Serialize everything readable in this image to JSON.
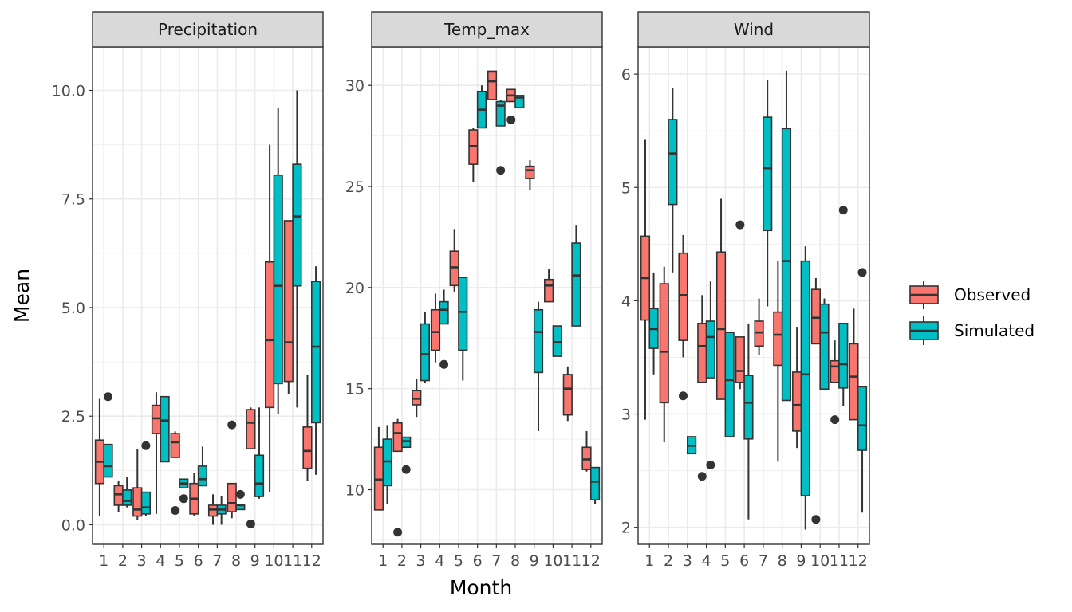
{
  "chart_data": {
    "type": "boxplot",
    "xlabel": "Month",
    "ylabel": "Mean",
    "legend": {
      "position": "right",
      "entries": [
        {
          "name": "Observed",
          "color": "#F8766D"
        },
        {
          "name": "Simulated",
          "color": "#00BFC4"
        }
      ]
    },
    "categories": [
      "1",
      "2",
      "3",
      "4",
      "5",
      "6",
      "7",
      "8",
      "9",
      "10",
      "11",
      "12"
    ],
    "panels": [
      {
        "title": "Precipitation",
        "ylim": [
          -0.45,
          11.0
        ],
        "ticks": [
          0.0,
          2.5,
          5.0,
          7.5,
          10.0
        ],
        "tick_labels": [
          "0.0",
          "2.5",
          "5.0",
          "7.5",
          "10.0"
        ],
        "series": [
          {
            "name": "Observed",
            "boxes": [
              {
                "month": 1,
                "min": 0.2,
                "q1": 0.95,
                "median": 1.45,
                "q3": 1.95,
                "max": 2.9,
                "outliers": []
              },
              {
                "month": 2,
                "min": 0.3,
                "q1": 0.45,
                "median": 0.7,
                "q3": 0.9,
                "max": 1.0,
                "outliers": []
              },
              {
                "month": 3,
                "min": 0.1,
                "q1": 0.2,
                "median": 0.35,
                "q3": 0.85,
                "max": 1.75,
                "outliers": []
              },
              {
                "month": 4,
                "min": 0.25,
                "q1": 2.1,
                "median": 2.45,
                "q3": 2.75,
                "max": 3.05,
                "outliers": []
              },
              {
                "month": 5,
                "min": 1.55,
                "q1": 1.55,
                "median": 1.9,
                "q3": 2.1,
                "max": 2.15,
                "outliers": [
                  0.33
                ]
              },
              {
                "month": 6,
                "min": 0.2,
                "q1": 0.25,
                "median": 0.6,
                "q3": 0.95,
                "max": 1.2,
                "outliers": []
              },
              {
                "month": 7,
                "min": 0.0,
                "q1": 0.2,
                "median": 0.35,
                "q3": 0.45,
                "max": 0.7,
                "outliers": []
              },
              {
                "month": 8,
                "min": 0.15,
                "q1": 0.3,
                "median": 0.5,
                "q3": 0.95,
                "max": 0.95,
                "outliers": [
                  2.3
                ]
              },
              {
                "month": 9,
                "min": 1.75,
                "q1": 1.75,
                "median": 2.35,
                "q3": 2.65,
                "max": 2.7,
                "outliers": [
                  0.02
                ]
              },
              {
                "month": 10,
                "min": 0.75,
                "q1": 2.7,
                "median": 4.25,
                "q3": 6.05,
                "max": 8.75,
                "outliers": []
              },
              {
                "month": 11,
                "min": 3.0,
                "q1": 3.3,
                "median": 4.2,
                "q3": 7.0,
                "max": 7.0,
                "outliers": []
              },
              {
                "month": 12,
                "min": 1.0,
                "q1": 1.3,
                "median": 1.7,
                "q3": 2.25,
                "max": 3.45,
                "outliers": []
              }
            ]
          },
          {
            "name": "Simulated",
            "boxes": [
              {
                "month": 1,
                "min": 1.1,
                "q1": 1.1,
                "median": 1.35,
                "q3": 1.85,
                "max": 1.85,
                "outliers": [
                  2.95
                ]
              },
              {
                "month": 2,
                "min": 0.4,
                "q1": 0.45,
                "median": 0.55,
                "q3": 0.8,
                "max": 1.1,
                "outliers": []
              },
              {
                "month": 3,
                "min": 0.2,
                "q1": 0.25,
                "median": 0.4,
                "q3": 0.75,
                "max": 0.75,
                "outliers": [
                  1.82
                ]
              },
              {
                "month": 4,
                "min": 1.45,
                "q1": 1.45,
                "median": 2.4,
                "q3": 2.95,
                "max": 2.95,
                "outliers": []
              },
              {
                "month": 5,
                "min": 0.85,
                "q1": 0.85,
                "median": 0.95,
                "q3": 1.05,
                "max": 1.05,
                "outliers": [
                  0.6
                ]
              },
              {
                "month": 6,
                "min": 0.9,
                "q1": 0.9,
                "median": 1.05,
                "q3": 1.35,
                "max": 1.8,
                "outliers": []
              },
              {
                "month": 7,
                "min": 0.0,
                "q1": 0.25,
                "median": 0.35,
                "q3": 0.45,
                "max": 0.65,
                "outliers": []
              },
              {
                "month": 8,
                "min": 0.35,
                "q1": 0.35,
                "median": 0.45,
                "q3": 0.45,
                "max": 0.45,
                "outliers": [
                  0.7
                ]
              },
              {
                "month": 9,
                "min": 0.6,
                "q1": 0.65,
                "median": 0.95,
                "q3": 1.6,
                "max": 2.7,
                "outliers": []
              },
              {
                "month": 10,
                "min": 2.55,
                "q1": 3.25,
                "median": 5.5,
                "q3": 8.05,
                "max": 9.6,
                "outliers": []
              },
              {
                "month": 11,
                "min": 2.7,
                "q1": 5.5,
                "median": 7.1,
                "q3": 8.3,
                "max": 10.0,
                "outliers": []
              },
              {
                "month": 12,
                "min": 1.15,
                "q1": 2.35,
                "median": 4.1,
                "q3": 5.6,
                "max": 5.95,
                "outliers": []
              }
            ]
          }
        ]
      },
      {
        "title": "Temp_max",
        "ylim": [
          7.3,
          31.9
        ],
        "ticks": [
          10,
          15,
          20,
          25,
          30
        ],
        "tick_labels": [
          "10",
          "15",
          "20",
          "25",
          "30"
        ],
        "series": [
          {
            "name": "Observed",
            "boxes": [
              {
                "month": 1,
                "min": 9.0,
                "q1": 9.0,
                "median": 10.5,
                "q3": 12.1,
                "max": 13.1,
                "outliers": []
              },
              {
                "month": 2,
                "min": 11.9,
                "q1": 11.9,
                "median": 12.8,
                "q3": 13.3,
                "max": 13.5,
                "outliers": [
                  7.9
                ]
              },
              {
                "month": 3,
                "min": 13.6,
                "q1": 14.2,
                "median": 14.5,
                "q3": 14.9,
                "max": 15.5,
                "outliers": []
              },
              {
                "month": 4,
                "min": 16.3,
                "q1": 16.9,
                "median": 17.8,
                "q3": 18.9,
                "max": 19.7,
                "outliers": []
              },
              {
                "month": 5,
                "min": 19.8,
                "q1": 20.1,
                "median": 21.0,
                "q3": 21.8,
                "max": 22.9,
                "outliers": []
              },
              {
                "month": 6,
                "min": 25.2,
                "q1": 26.1,
                "median": 27.0,
                "q3": 27.8,
                "max": 27.9,
                "outliers": []
              },
              {
                "month": 7,
                "min": 29.3,
                "q1": 29.3,
                "median": 30.2,
                "q3": 30.7,
                "max": 30.7,
                "outliers": []
              },
              {
                "month": 8,
                "min": 29.2,
                "q1": 29.2,
                "median": 29.5,
                "q3": 29.8,
                "max": 29.8,
                "outliers": [
                  28.3
                ]
              },
              {
                "month": 9,
                "min": 24.8,
                "q1": 25.4,
                "median": 25.8,
                "q3": 26.0,
                "max": 26.3,
                "outliers": []
              },
              {
                "month": 10,
                "min": 19.3,
                "q1": 19.3,
                "median": 20.1,
                "q3": 20.4,
                "max": 20.9,
                "outliers": []
              },
              {
                "month": 11,
                "min": 13.4,
                "q1": 13.7,
                "median": 15.0,
                "q3": 15.7,
                "max": 16.1,
                "outliers": []
              },
              {
                "month": 12,
                "min": 10.9,
                "q1": 11.0,
                "median": 11.5,
                "q3": 12.1,
                "max": 12.9,
                "outliers": []
              }
            ]
          },
          {
            "name": "Simulated",
            "boxes": [
              {
                "month": 1,
                "min": 9.3,
                "q1": 10.2,
                "median": 11.4,
                "q3": 12.5,
                "max": 13.2,
                "outliers": []
              },
              {
                "month": 2,
                "min": 12.1,
                "q1": 12.1,
                "median": 12.4,
                "q3": 12.6,
                "max": 12.6,
                "outliers": [
                  11.0
                ]
              },
              {
                "month": 3,
                "min": 15.3,
                "q1": 15.4,
                "median": 16.7,
                "q3": 18.2,
                "max": 18.8,
                "outliers": []
              },
              {
                "month": 4,
                "min": 18.2,
                "q1": 18.2,
                "median": 18.9,
                "q3": 19.3,
                "max": 19.9,
                "outliers": [
                  16.2
                ]
              },
              {
                "month": 5,
                "min": 15.4,
                "q1": 16.9,
                "median": 18.8,
                "q3": 20.5,
                "max": 20.5,
                "outliers": []
              },
              {
                "month": 6,
                "min": 27.9,
                "q1": 27.9,
                "median": 28.8,
                "q3": 29.7,
                "max": 30.0,
                "outliers": []
              },
              {
                "month": 7,
                "min": 28.0,
                "q1": 28.0,
                "median": 29.0,
                "q3": 29.2,
                "max": 29.3,
                "outliers": [
                  25.8
                ]
              },
              {
                "month": 8,
                "min": 28.9,
                "q1": 28.9,
                "median": 29.4,
                "q3": 29.5,
                "max": 29.5,
                "outliers": []
              },
              {
                "month": 9,
                "min": 12.9,
                "q1": 15.8,
                "median": 17.8,
                "q3": 18.9,
                "max": 19.3,
                "outliers": []
              },
              {
                "month": 10,
                "min": 16.6,
                "q1": 16.6,
                "median": 17.3,
                "q3": 18.1,
                "max": 18.1,
                "outliers": []
              },
              {
                "month": 11,
                "min": 18.1,
                "q1": 18.1,
                "median": 20.6,
                "q3": 22.2,
                "max": 23.1,
                "outliers": []
              },
              {
                "month": 12,
                "min": 9.3,
                "q1": 9.5,
                "median": 10.4,
                "q3": 11.1,
                "max": 11.1,
                "outliers": []
              }
            ]
          }
        ]
      },
      {
        "title": "Wind",
        "ylim": [
          1.85,
          6.24
        ],
        "ticks": [
          2,
          3,
          4,
          5,
          6
        ],
        "tick_labels": [
          "2",
          "3",
          "4",
          "5",
          "6"
        ],
        "series": [
          {
            "name": "Observed",
            "boxes": [
              {
                "month": 1,
                "min": 2.95,
                "q1": 3.83,
                "median": 4.2,
                "q3": 4.57,
                "max": 5.42,
                "outliers": []
              },
              {
                "month": 2,
                "min": 2.75,
                "q1": 3.1,
                "median": 3.55,
                "q3": 4.15,
                "max": 4.3,
                "outliers": []
              },
              {
                "month": 3,
                "min": 3.5,
                "q1": 3.65,
                "median": 4.05,
                "q3": 4.42,
                "max": 4.58,
                "outliers": [
                  3.16
                ]
              },
              {
                "month": 4,
                "min": 3.28,
                "q1": 3.28,
                "median": 3.6,
                "q3": 3.8,
                "max": 4.05,
                "outliers": [
                  2.45
                ]
              },
              {
                "month": 5,
                "min": 3.13,
                "q1": 3.13,
                "median": 3.75,
                "q3": 4.43,
                "max": 4.9,
                "outliers": []
              },
              {
                "month": 6,
                "min": 3.22,
                "q1": 3.28,
                "median": 3.38,
                "q3": 3.68,
                "max": 3.68,
                "outliers": [
                  4.67
                ]
              },
              {
                "month": 7,
                "min": 3.52,
                "q1": 3.6,
                "median": 3.72,
                "q3": 3.82,
                "max": 4.02,
                "outliers": []
              },
              {
                "month": 8,
                "min": 2.58,
                "q1": 3.43,
                "median": 3.7,
                "q3": 3.9,
                "max": 4.35,
                "outliers": []
              },
              {
                "month": 9,
                "min": 2.7,
                "q1": 2.85,
                "median": 3.08,
                "q3": 3.37,
                "max": 3.77,
                "outliers": []
              },
              {
                "month": 10,
                "min": 3.62,
                "q1": 3.62,
                "median": 3.85,
                "q3": 4.1,
                "max": 4.2,
                "outliers": [
                  2.07
                ]
              },
              {
                "month": 11,
                "min": 3.28,
                "q1": 3.28,
                "median": 3.42,
                "q3": 3.47,
                "max": 3.65,
                "outliers": [
                  2.95
                ]
              },
              {
                "month": 12,
                "min": 2.95,
                "q1": 2.95,
                "median": 3.33,
                "q3": 3.62,
                "max": 3.93,
                "outliers": []
              }
            ]
          },
          {
            "name": "Simulated",
            "boxes": [
              {
                "month": 1,
                "min": 3.35,
                "q1": 3.58,
                "median": 3.75,
                "q3": 3.93,
                "max": 4.25,
                "outliers": []
              },
              {
                "month": 2,
                "min": 4.25,
                "q1": 4.85,
                "median": 5.3,
                "q3": 5.6,
                "max": 5.88,
                "outliers": []
              },
              {
                "month": 3,
                "min": 2.65,
                "q1": 2.65,
                "median": 2.72,
                "q3": 2.8,
                "max": 2.8,
                "outliers": []
              },
              {
                "month": 4,
                "min": 3.32,
                "q1": 3.32,
                "median": 3.68,
                "q3": 3.82,
                "max": 4.17,
                "outliers": [
                  2.55
                ]
              },
              {
                "month": 5,
                "min": 2.8,
                "q1": 2.8,
                "median": 3.3,
                "q3": 3.72,
                "max": 3.72,
                "outliers": []
              },
              {
                "month": 6,
                "min": 2.07,
                "q1": 2.78,
                "median": 3.1,
                "q3": 3.34,
                "max": 3.8,
                "outliers": []
              },
              {
                "month": 7,
                "min": 3.95,
                "q1": 4.62,
                "median": 5.17,
                "q3": 5.62,
                "max": 5.95,
                "outliers": []
              },
              {
                "month": 8,
                "min": 3.12,
                "q1": 3.12,
                "median": 4.35,
                "q3": 5.52,
                "max": 6.03,
                "outliers": []
              },
              {
                "month": 9,
                "min": 1.98,
                "q1": 2.28,
                "median": 3.35,
                "q3": 4.35,
                "max": 4.48,
                "outliers": []
              },
              {
                "month": 10,
                "min": 3.22,
                "q1": 3.22,
                "median": 3.72,
                "q3": 3.97,
                "max": 4.02,
                "outliers": []
              },
              {
                "month": 11,
                "min": 3.07,
                "q1": 3.23,
                "median": 3.44,
                "q3": 3.8,
                "max": 3.8,
                "outliers": [
                  4.8
                ]
              },
              {
                "month": 12,
                "min": 2.13,
                "q1": 2.68,
                "median": 2.9,
                "q3": 3.24,
                "max": 3.24,
                "outliers": [
                  4.25
                ]
              }
            ]
          }
        ]
      }
    ]
  }
}
